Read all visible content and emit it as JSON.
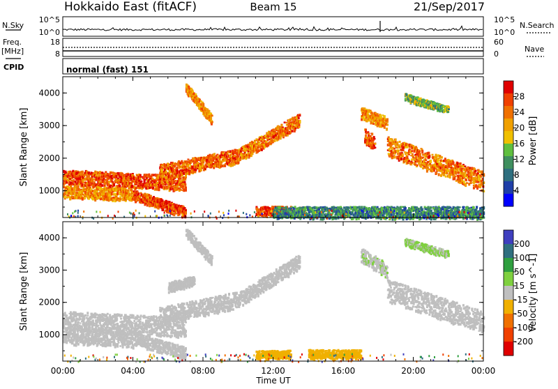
{
  "header": {
    "station": "Hokkaido East (fitACF)",
    "beam": "Beam 15",
    "date": "21/Sep/2017"
  },
  "strips": {
    "nsky_label": "N.Sky",
    "nsky_ticks": [
      "10^5",
      "10^0"
    ],
    "nsearch_label": "N.Search",
    "freq_label": "Freq.",
    "freq_unit": "[MHz]",
    "freq_ticks": [
      "18",
      "8"
    ],
    "nave_label": "Nave",
    "nave_ticks": [
      "60",
      "0"
    ],
    "cpid_label": "CPID",
    "cpid_value": "normal (fast) 151"
  },
  "colors": {
    "power_scale": [
      "#0000ff",
      "#1f3fa8",
      "#2f6f7f",
      "#3f8f5f",
      "#5fbf3f",
      "#f0c000",
      "#f0a000",
      "#f07000",
      "#f04000",
      "#e00000"
    ],
    "velocity_scale": [
      "#3f3fbf",
      "#2f6f7f",
      "#2f9f3f",
      "#7fd03f",
      "#bfbfbf",
      "#f0b000",
      "#f07000",
      "#f04000",
      "#e00000"
    ]
  },
  "chart_data": [
    {
      "type": "heatmap",
      "name": "Power",
      "ylabel": "Slant Range [km]",
      "xlabel": "Time UT",
      "x_ticks": [
        "00:00",
        "04:00",
        "08:00",
        "12:00",
        "16:00",
        "20:00",
        "00:00"
      ],
      "x_range_hours": [
        0,
        24
      ],
      "y_ticks": [
        "1000",
        "2000",
        "3000",
        "4000"
      ],
      "y_range_km": [
        180,
        4500
      ],
      "colorbar": {
        "label": "Power [dB]",
        "ticks": [
          "28",
          "24",
          "20",
          "16",
          "12",
          "8",
          "4"
        ],
        "range": [
          0,
          32
        ]
      },
      "echo_bands": [
        {
          "t_start": 0.0,
          "t_end": 7.0,
          "r_start": 1450,
          "r_end": 1250,
          "width": 300,
          "level": 26
        },
        {
          "t_start": 0.0,
          "t_end": 4.0,
          "r_start": 1000,
          "r_end": 900,
          "width": 250,
          "level": 22
        },
        {
          "t_start": 4.0,
          "t_end": 7.0,
          "r_start": 900,
          "r_end": 350,
          "width": 220,
          "level": 27
        },
        {
          "t_start": 5.5,
          "t_end": 10.0,
          "r_start": 1600,
          "r_end": 2100,
          "width": 300,
          "level": 25
        },
        {
          "t_start": 10.0,
          "t_end": 13.5,
          "r_start": 2100,
          "r_end": 3200,
          "width": 280,
          "level": 24
        },
        {
          "t_start": 7.0,
          "t_end": 8.5,
          "r_start": 4200,
          "r_end": 3200,
          "width": 200,
          "level": 22
        },
        {
          "t_start": 13.3,
          "t_end": 13.8,
          "r_start": 350,
          "r_end": 400,
          "width": 180,
          "level": 27
        },
        {
          "t_start": 11.0,
          "t_end": 13.0,
          "r_start": 400,
          "r_end": 420,
          "width": 180,
          "level": 28
        },
        {
          "t_start": 17.0,
          "t_end": 18.5,
          "r_start": 3400,
          "r_end": 3100,
          "width": 250,
          "level": 22
        },
        {
          "t_start": 17.2,
          "t_end": 17.8,
          "r_start": 2700,
          "r_end": 2500,
          "width": 300,
          "level": 26
        },
        {
          "t_start": 18.5,
          "t_end": 24.0,
          "r_start": 2400,
          "r_end": 1300,
          "width": 400,
          "level": 24
        },
        {
          "t_start": 19.5,
          "t_end": 22.0,
          "r_start": 3900,
          "r_end": 3500,
          "width": 150,
          "level": 14
        },
        {
          "t_start": 12.0,
          "t_end": 24.0,
          "r_start": 350,
          "r_end": 350,
          "width": 250,
          "level": 10
        }
      ]
    },
    {
      "type": "heatmap",
      "name": "Velocity",
      "ylabel": "Slant Range [km]",
      "xlabel": "Time UT",
      "x_ticks": [
        "00:00",
        "04:00",
        "08:00",
        "12:00",
        "16:00",
        "20:00",
        "00:00"
      ],
      "x_range_hours": [
        0,
        24
      ],
      "y_ticks": [
        "1000",
        "2000",
        "3000",
        "4000"
      ],
      "y_range_km": [
        180,
        4500
      ],
      "colorbar": {
        "label": "Velocity [m s^-1]",
        "ticks": [
          "200",
          "100",
          "50",
          "15",
          "-15",
          "-50",
          "-100",
          "-200"
        ],
        "range": [
          -250,
          250
        ]
      },
      "echo_bands": [
        {
          "t_start": 0.0,
          "t_end": 7.0,
          "r_start": 1450,
          "r_end": 1250,
          "width": 400,
          "level": 0
        },
        {
          "t_start": 0.0,
          "t_end": 4.0,
          "r_start": 1000,
          "r_end": 900,
          "width": 350,
          "level": 0
        },
        {
          "t_start": 4.0,
          "t_end": 7.0,
          "r_start": 900,
          "r_end": 450,
          "width": 250,
          "level": 0
        },
        {
          "t_start": 5.5,
          "t_end": 10.0,
          "r_start": 1600,
          "r_end": 2100,
          "width": 350,
          "level": 0
        },
        {
          "t_start": 10.0,
          "t_end": 13.5,
          "r_start": 2100,
          "r_end": 3300,
          "width": 300,
          "level": 0
        },
        {
          "t_start": 7.0,
          "t_end": 8.5,
          "r_start": 4200,
          "r_end": 3300,
          "width": 200,
          "level": 0
        },
        {
          "t_start": 11.0,
          "t_end": 13.0,
          "r_start": 400,
          "r_end": 420,
          "width": 160,
          "level": -40
        },
        {
          "t_start": 14.0,
          "t_end": 17.0,
          "r_start": 420,
          "r_end": 420,
          "width": 180,
          "level": -35
        },
        {
          "t_start": 17.0,
          "t_end": 18.5,
          "r_start": 3500,
          "r_end": 3000,
          "width": 300,
          "level": 25
        },
        {
          "t_start": 18.5,
          "t_end": 24.0,
          "r_start": 2400,
          "r_end": 1400,
          "width": 450,
          "level": 5
        },
        {
          "t_start": 19.5,
          "t_end": 22.0,
          "r_start": 3900,
          "r_end": 3500,
          "width": 150,
          "level": 30
        },
        {
          "t_start": 6.0,
          "t_end": 7.5,
          "r_start": 2500,
          "r_end": 2700,
          "width": 200,
          "level": 20
        }
      ]
    }
  ]
}
